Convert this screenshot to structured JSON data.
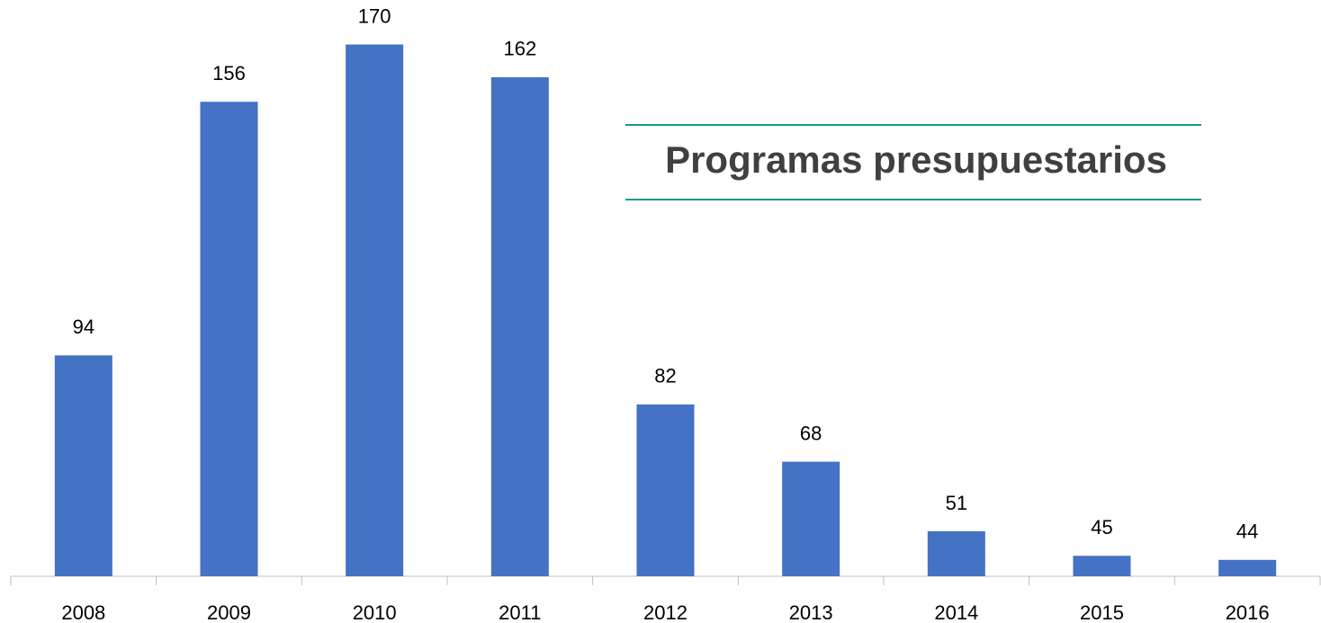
{
  "chart_data": {
    "type": "bar",
    "title": "Programas presupuestarios",
    "categories": [
      "2008",
      "2009",
      "2010",
      "2011",
      "2012",
      "2013",
      "2014",
      "2015",
      "2016"
    ],
    "values": [
      94,
      156,
      170,
      162,
      82,
      68,
      51,
      45,
      44
    ],
    "color": "#4472c4",
    "ylim": [
      40,
      180
    ]
  }
}
